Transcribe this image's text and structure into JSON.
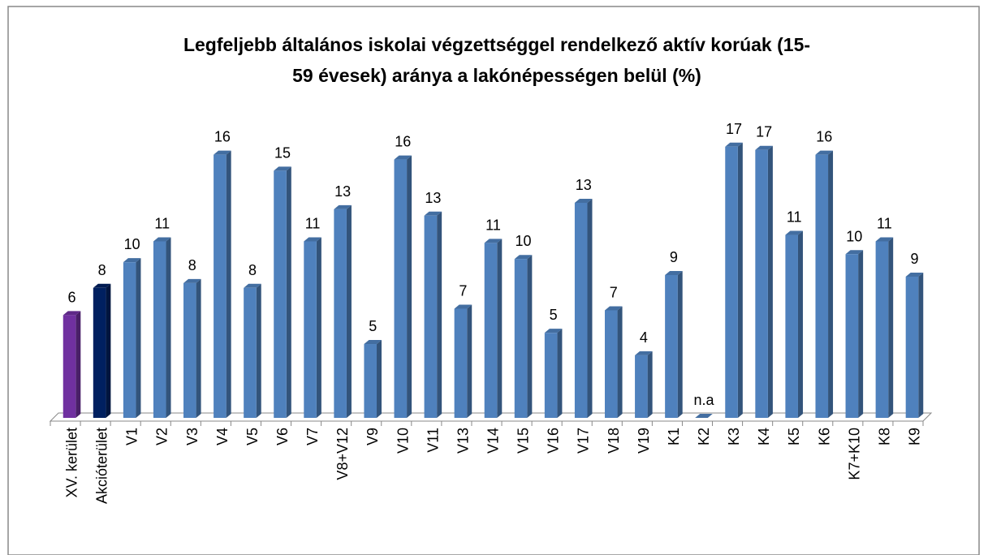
{
  "chart_data": {
    "type": "bar3d",
    "title": [
      "Legfeljebb általános iskolai végzettséggel rendelkező aktív korúak  (15-",
      "59 évesek) aránya a lakónépességen belül (%)"
    ],
    "categories": [
      "XV. kerület",
      "Akcióterület",
      "V1",
      "V2",
      "V3",
      "V4",
      "V5",
      "V6",
      "V7",
      "V8+V12",
      "V9",
      "V10",
      "V11",
      "V13",
      "V14",
      "V15",
      "V16",
      "V17",
      "V18",
      "V19",
      "K1",
      "K2",
      "K3",
      "K4",
      "K5",
      "K6",
      "K7+K10",
      "K8",
      "K9"
    ],
    "values": [
      6.4,
      8.1,
      9.7,
      11.0,
      8.4,
      16.4,
      8.1,
      15.4,
      11.0,
      13.0,
      4.6,
      16.1,
      12.6,
      6.8,
      10.9,
      9.9,
      5.3,
      13.4,
      6.7,
      3.9,
      8.9,
      null,
      16.9,
      16.7,
      11.4,
      16.4,
      10.2,
      11.0,
      8.8
    ],
    "value_labels": [
      "6",
      "8",
      "10",
      "11",
      "8",
      "16",
      "8",
      "15",
      "11",
      "13",
      "5",
      "16",
      "13",
      "7",
      "11",
      "10",
      "5",
      "13",
      "7",
      "4",
      "9",
      "n.a",
      "17",
      "17",
      "11",
      "16",
      "10",
      "11",
      "9"
    ],
    "colors": [
      "#7030a0",
      "#002060",
      "#4f81bd",
      "#4f81bd",
      "#4f81bd",
      "#4f81bd",
      "#4f81bd",
      "#4f81bd",
      "#4f81bd",
      "#4f81bd",
      "#4f81bd",
      "#4f81bd",
      "#4f81bd",
      "#4f81bd",
      "#4f81bd",
      "#4f81bd",
      "#4f81bd",
      "#4f81bd",
      "#4f81bd",
      "#4f81bd",
      "#4f81bd",
      "#4f81bd",
      "#4f81bd",
      "#4f81bd",
      "#4f81bd",
      "#4f81bd",
      "#4f81bd",
      "#4f81bd",
      "#4f81bd"
    ],
    "ylim": [
      0,
      18
    ]
  }
}
